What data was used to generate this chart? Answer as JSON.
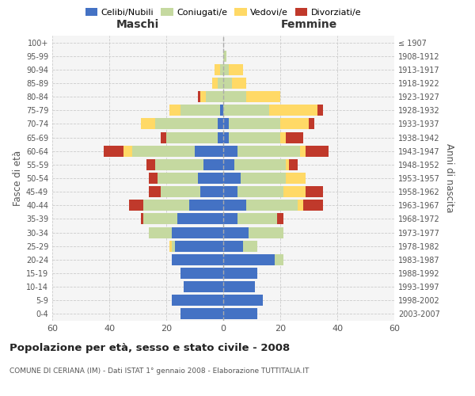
{
  "age_groups": [
    "0-4",
    "5-9",
    "10-14",
    "15-19",
    "20-24",
    "25-29",
    "30-34",
    "35-39",
    "40-44",
    "45-49",
    "50-54",
    "55-59",
    "60-64",
    "65-69",
    "70-74",
    "75-79",
    "80-84",
    "85-89",
    "90-94",
    "95-99",
    "100+"
  ],
  "birth_years": [
    "2003-2007",
    "1998-2002",
    "1993-1997",
    "1988-1992",
    "1983-1987",
    "1978-1982",
    "1973-1977",
    "1968-1972",
    "1963-1967",
    "1958-1962",
    "1953-1957",
    "1948-1952",
    "1943-1947",
    "1938-1942",
    "1933-1937",
    "1928-1932",
    "1923-1927",
    "1918-1922",
    "1913-1917",
    "1908-1912",
    "≤ 1907"
  ],
  "maschi": {
    "celibi": [
      15,
      18,
      14,
      15,
      18,
      17,
      18,
      16,
      12,
      8,
      9,
      7,
      10,
      2,
      2,
      1,
      0,
      0,
      0,
      0,
      0
    ],
    "coniugati": [
      0,
      0,
      0,
      0,
      0,
      1,
      8,
      12,
      16,
      14,
      14,
      17,
      22,
      18,
      22,
      14,
      6,
      2,
      1,
      0,
      0
    ],
    "vedovi": [
      0,
      0,
      0,
      0,
      0,
      1,
      0,
      0,
      0,
      0,
      0,
      0,
      3,
      0,
      5,
      4,
      2,
      2,
      2,
      0,
      0
    ],
    "divorziati": [
      0,
      0,
      0,
      0,
      0,
      0,
      0,
      1,
      5,
      4,
      3,
      3,
      7,
      2,
      0,
      0,
      1,
      0,
      0,
      0,
      0
    ]
  },
  "femmine": {
    "nubili": [
      12,
      14,
      11,
      12,
      18,
      7,
      9,
      5,
      8,
      5,
      6,
      4,
      5,
      2,
      2,
      0,
      0,
      0,
      0,
      0,
      0
    ],
    "coniugate": [
      0,
      0,
      0,
      0,
      3,
      5,
      12,
      14,
      18,
      16,
      16,
      18,
      22,
      18,
      18,
      16,
      8,
      3,
      2,
      1,
      0
    ],
    "vedove": [
      0,
      0,
      0,
      0,
      0,
      0,
      0,
      0,
      2,
      8,
      7,
      1,
      2,
      2,
      10,
      17,
      12,
      5,
      5,
      0,
      0
    ],
    "divorziate": [
      0,
      0,
      0,
      0,
      0,
      0,
      0,
      2,
      7,
      6,
      0,
      3,
      8,
      6,
      2,
      2,
      0,
      0,
      0,
      0,
      0
    ]
  },
  "colors": {
    "celibi": "#4472C4",
    "coniugati": "#C5D9A0",
    "vedovi": "#FFD966",
    "divorziati": "#C0392B"
  },
  "xlim": 60,
  "title": "Popolazione per età, sesso e stato civile - 2008",
  "subtitle": "COMUNE DI CERIANA (IM) - Dati ISTAT 1° gennaio 2008 - Elaborazione TUTTITALIA.IT",
  "ylabel_left": "Fasce di età",
  "ylabel_right": "Anni di nascita",
  "xlabel_left": "Maschi",
  "xlabel_right": "Femmine",
  "background_color": "#ffffff",
  "plot_bg_color": "#f5f5f5"
}
